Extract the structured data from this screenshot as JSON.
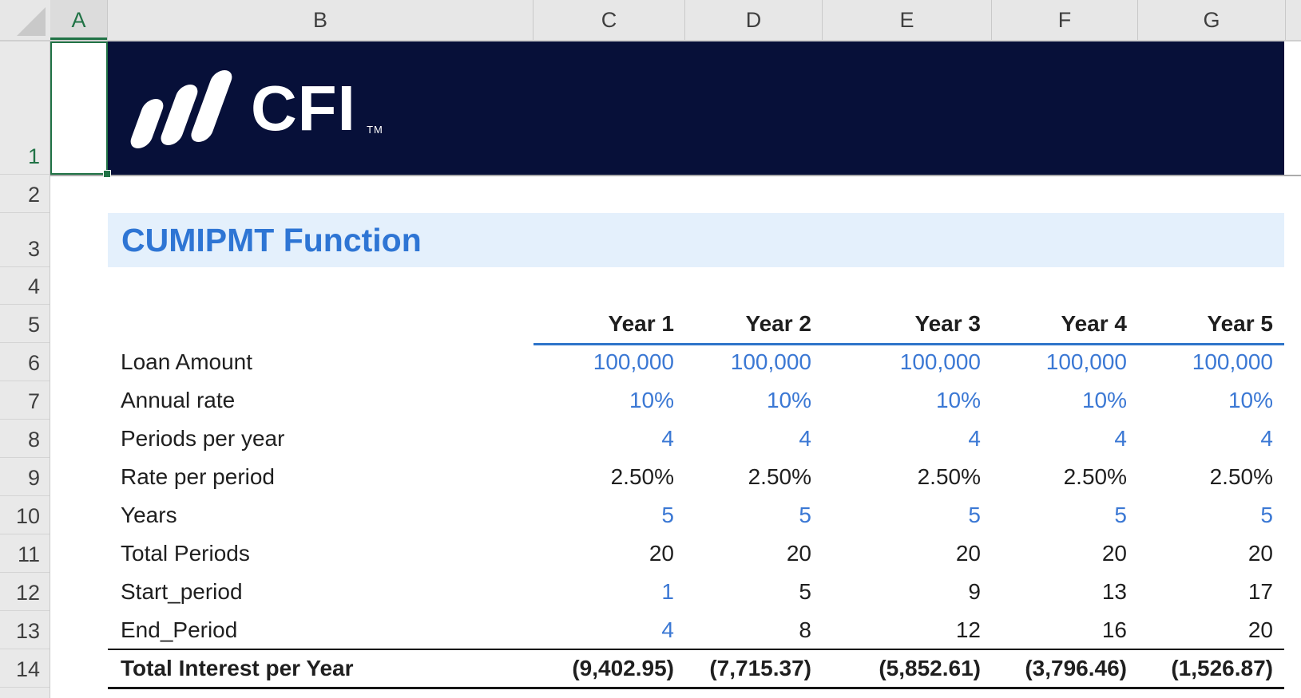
{
  "spreadsheet": {
    "column_headers": [
      "A",
      "B",
      "C",
      "D",
      "E",
      "F",
      "G"
    ],
    "row_headers": [
      "1",
      "2",
      "3",
      "4",
      "5",
      "6",
      "7",
      "8",
      "9",
      "10",
      "11",
      "12",
      "13",
      "14"
    ],
    "selected_cell": "A1"
  },
  "banner": {
    "logo_text": "CFI",
    "logo_trademark": "TM"
  },
  "title": {
    "text": "CUMIPMT Function"
  },
  "table": {
    "year_headers": [
      "Year 1",
      "Year 2",
      "Year 3",
      "Year 4",
      "Year 5"
    ],
    "rows": [
      {
        "label": "Loan Amount",
        "values": [
          "100,000",
          "100,000",
          "100,000",
          "100,000",
          "100,000"
        ],
        "value_colors": "all-blue"
      },
      {
        "label": "Annual rate",
        "values": [
          "10%",
          "10%",
          "10%",
          "10%",
          "10%"
        ],
        "value_colors": "all-blue"
      },
      {
        "label": "Periods per year",
        "values": [
          "4",
          "4",
          "4",
          "4",
          "4"
        ],
        "value_colors": "all-blue"
      },
      {
        "label": "Rate per period",
        "values": [
          "2.50%",
          "2.50%",
          "2.50%",
          "2.50%",
          "2.50%"
        ],
        "value_colors": "all-black"
      },
      {
        "label": "Years",
        "values": [
          "5",
          "5",
          "5",
          "5",
          "5"
        ],
        "value_colors": "all-blue"
      },
      {
        "label": "Total Periods",
        "values": [
          "20",
          "20",
          "20",
          "20",
          "20"
        ],
        "value_colors": "all-black"
      },
      {
        "label": "Start_period",
        "values": [
          "1",
          "5",
          "9",
          "13",
          "17"
        ],
        "value_colors": "first-blue"
      },
      {
        "label": "End_Period",
        "values": [
          "4",
          "8",
          "12",
          "16",
          "20"
        ],
        "value_colors": "first-blue"
      }
    ],
    "total_row": {
      "label": "Total Interest per Year",
      "values": [
        "(9,402.95)",
        "(7,715.37)",
        "(5,852.61)",
        "(3,796.46)",
        "(1,526.87)"
      ]
    }
  },
  "colors": {
    "banner_navy": "#071039",
    "title_blue": "#2e75d4",
    "band_blue": "#e4f0fc",
    "input_blue": "#3b78d4",
    "underline_blue": "#2e74c9",
    "text_black": "#1f1f1f",
    "selection_green": "#217346"
  }
}
